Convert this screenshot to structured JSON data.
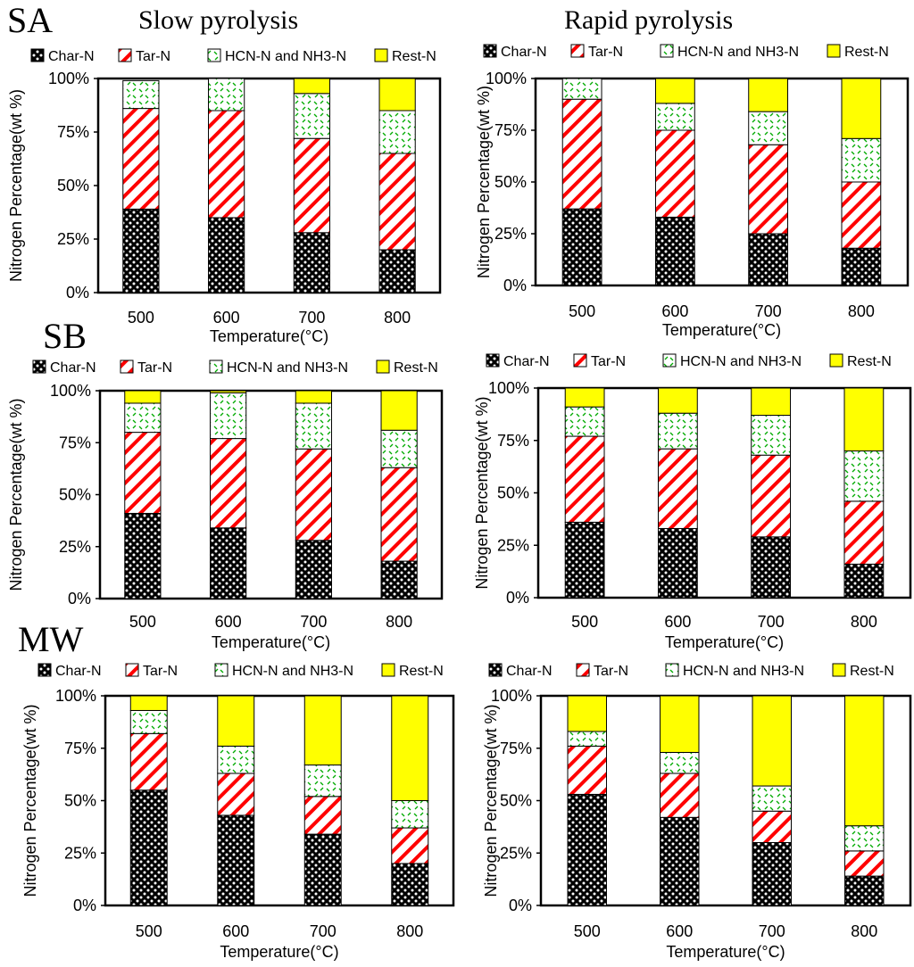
{
  "figure": {
    "rows": [
      {
        "label": "SA"
      },
      {
        "label": "SB"
      },
      {
        "label": "MW"
      }
    ],
    "columns": [
      {
        "title": "Slow pyrolysis"
      },
      {
        "title": "Rapid pyrolysis"
      }
    ]
  },
  "legend": {
    "items": [
      {
        "name": "Char-N",
        "pattern": "char"
      },
      {
        "name": "Tar-N",
        "pattern": "tar"
      },
      {
        "name": "HCN-N and NH3-N",
        "pattern": "hcn"
      },
      {
        "name": "Rest-N",
        "pattern": "rest"
      }
    ]
  },
  "colors": {
    "tar_stripe": "#ff0000",
    "hcn_dash": "#00aa00",
    "rest_fill": "#ffff00",
    "char_fill": "#000000",
    "char_dot": "#ffffff"
  },
  "chart_data": [
    {
      "type": "bar",
      "stacked": true,
      "panel": "SA slow",
      "categories": [
        "500",
        "600",
        "700",
        "800"
      ],
      "xlabel": "Temperature(°C)",
      "ylabel": "Nitrogen Percentage(wt %)",
      "ylim": [
        0,
        100
      ],
      "yticks": [
        "0%",
        "25%",
        "50%",
        "75%",
        "100%"
      ],
      "series": [
        {
          "name": "Char-N",
          "values": [
            39,
            35,
            28,
            20
          ]
        },
        {
          "name": "Tar-N",
          "values": [
            47,
            50,
            44,
            45
          ]
        },
        {
          "name": "HCN-N and NH3-N",
          "values": [
            13,
            15,
            21,
            20
          ]
        },
        {
          "name": "Rest-N",
          "values": [
            0,
            0,
            7,
            15
          ]
        }
      ]
    },
    {
      "type": "bar",
      "stacked": true,
      "panel": "SA rapid",
      "categories": [
        "500",
        "600",
        "700",
        "800"
      ],
      "xlabel": "Temperature(°C)",
      "ylabel": "Nitrogen Percentage(wt %)",
      "ylim": [
        0,
        100
      ],
      "yticks": [
        "0%",
        "25%",
        "50%",
        "75%",
        "100%"
      ],
      "series": [
        {
          "name": "Char-N",
          "values": [
            37,
            33,
            25,
            18
          ]
        },
        {
          "name": "Tar-N",
          "values": [
            53,
            42,
            43,
            32
          ]
        },
        {
          "name": "HCN-N and NH3-N",
          "values": [
            10,
            13,
            16,
            21
          ]
        },
        {
          "name": "Rest-N",
          "values": [
            0,
            12,
            16,
            29
          ]
        }
      ]
    },
    {
      "type": "bar",
      "stacked": true,
      "panel": "SB slow",
      "categories": [
        "500",
        "600",
        "700",
        "800"
      ],
      "xlabel": "Temperature(°C)",
      "ylabel": "Nitrogen Percentage(wt %)",
      "ylim": [
        0,
        100
      ],
      "yticks": [
        "0%",
        "25%",
        "50%",
        "75%",
        "100%"
      ],
      "series": [
        {
          "name": "Char-N",
          "values": [
            41,
            34,
            28,
            18
          ]
        },
        {
          "name": "Tar-N",
          "values": [
            39,
            43,
            44,
            45
          ]
        },
        {
          "name": "HCN-N and NH3-N",
          "values": [
            14,
            22,
            22,
            18
          ]
        },
        {
          "name": "Rest-N",
          "values": [
            6,
            1,
            6,
            19
          ]
        }
      ]
    },
    {
      "type": "bar",
      "stacked": true,
      "panel": "SB rapid",
      "categories": [
        "500",
        "600",
        "700",
        "800"
      ],
      "xlabel": "Temperature(°C)",
      "ylabel": "Nitrogen Percentage(wt %)",
      "ylim": [
        0,
        100
      ],
      "yticks": [
        "0%",
        "25%",
        "50%",
        "75%",
        "100%"
      ],
      "series": [
        {
          "name": "Char-N",
          "values": [
            36,
            33,
            29,
            16
          ]
        },
        {
          "name": "Tar-N",
          "values": [
            41,
            38,
            39,
            30
          ]
        },
        {
          "name": "HCN-N and NH3-N",
          "values": [
            14,
            17,
            19,
            24
          ]
        },
        {
          "name": "Rest-N",
          "values": [
            9,
            12,
            13,
            30
          ]
        }
      ]
    },
    {
      "type": "bar",
      "stacked": true,
      "panel": "MW slow",
      "categories": [
        "500",
        "600",
        "700",
        "800"
      ],
      "xlabel": "Temperature(°C)",
      "ylabel": "Nitrogen Percentage(wt %)",
      "ylim": [
        0,
        100
      ],
      "yticks": [
        "0%",
        "25%",
        "50%",
        "75%",
        "100%"
      ],
      "series": [
        {
          "name": "Char-N",
          "values": [
            55,
            43,
            34,
            20
          ]
        },
        {
          "name": "Tar-N",
          "values": [
            27,
            20,
            18,
            17
          ]
        },
        {
          "name": "HCN-N and NH3-N",
          "values": [
            11,
            13,
            15,
            13
          ]
        },
        {
          "name": "Rest-N",
          "values": [
            7,
            24,
            33,
            50
          ]
        }
      ]
    },
    {
      "type": "bar",
      "stacked": true,
      "panel": "MW rapid",
      "categories": [
        "500",
        "600",
        "700",
        "800"
      ],
      "xlabel": "Temperature(°C)",
      "ylabel": "Nitrogen Percentage(wt %)",
      "ylim": [
        0,
        100
      ],
      "yticks": [
        "0%",
        "25%",
        "50%",
        "75%",
        "100%"
      ],
      "series": [
        {
          "name": "Char-N",
          "values": [
            53,
            42,
            30,
            14
          ]
        },
        {
          "name": "Tar-N",
          "values": [
            23,
            21,
            15,
            12
          ]
        },
        {
          "name": "HCN-N and NH3-N",
          "values": [
            7,
            10,
            12,
            12
          ]
        },
        {
          "name": "Rest-N",
          "values": [
            17,
            27,
            43,
            62
          ]
        }
      ]
    }
  ]
}
